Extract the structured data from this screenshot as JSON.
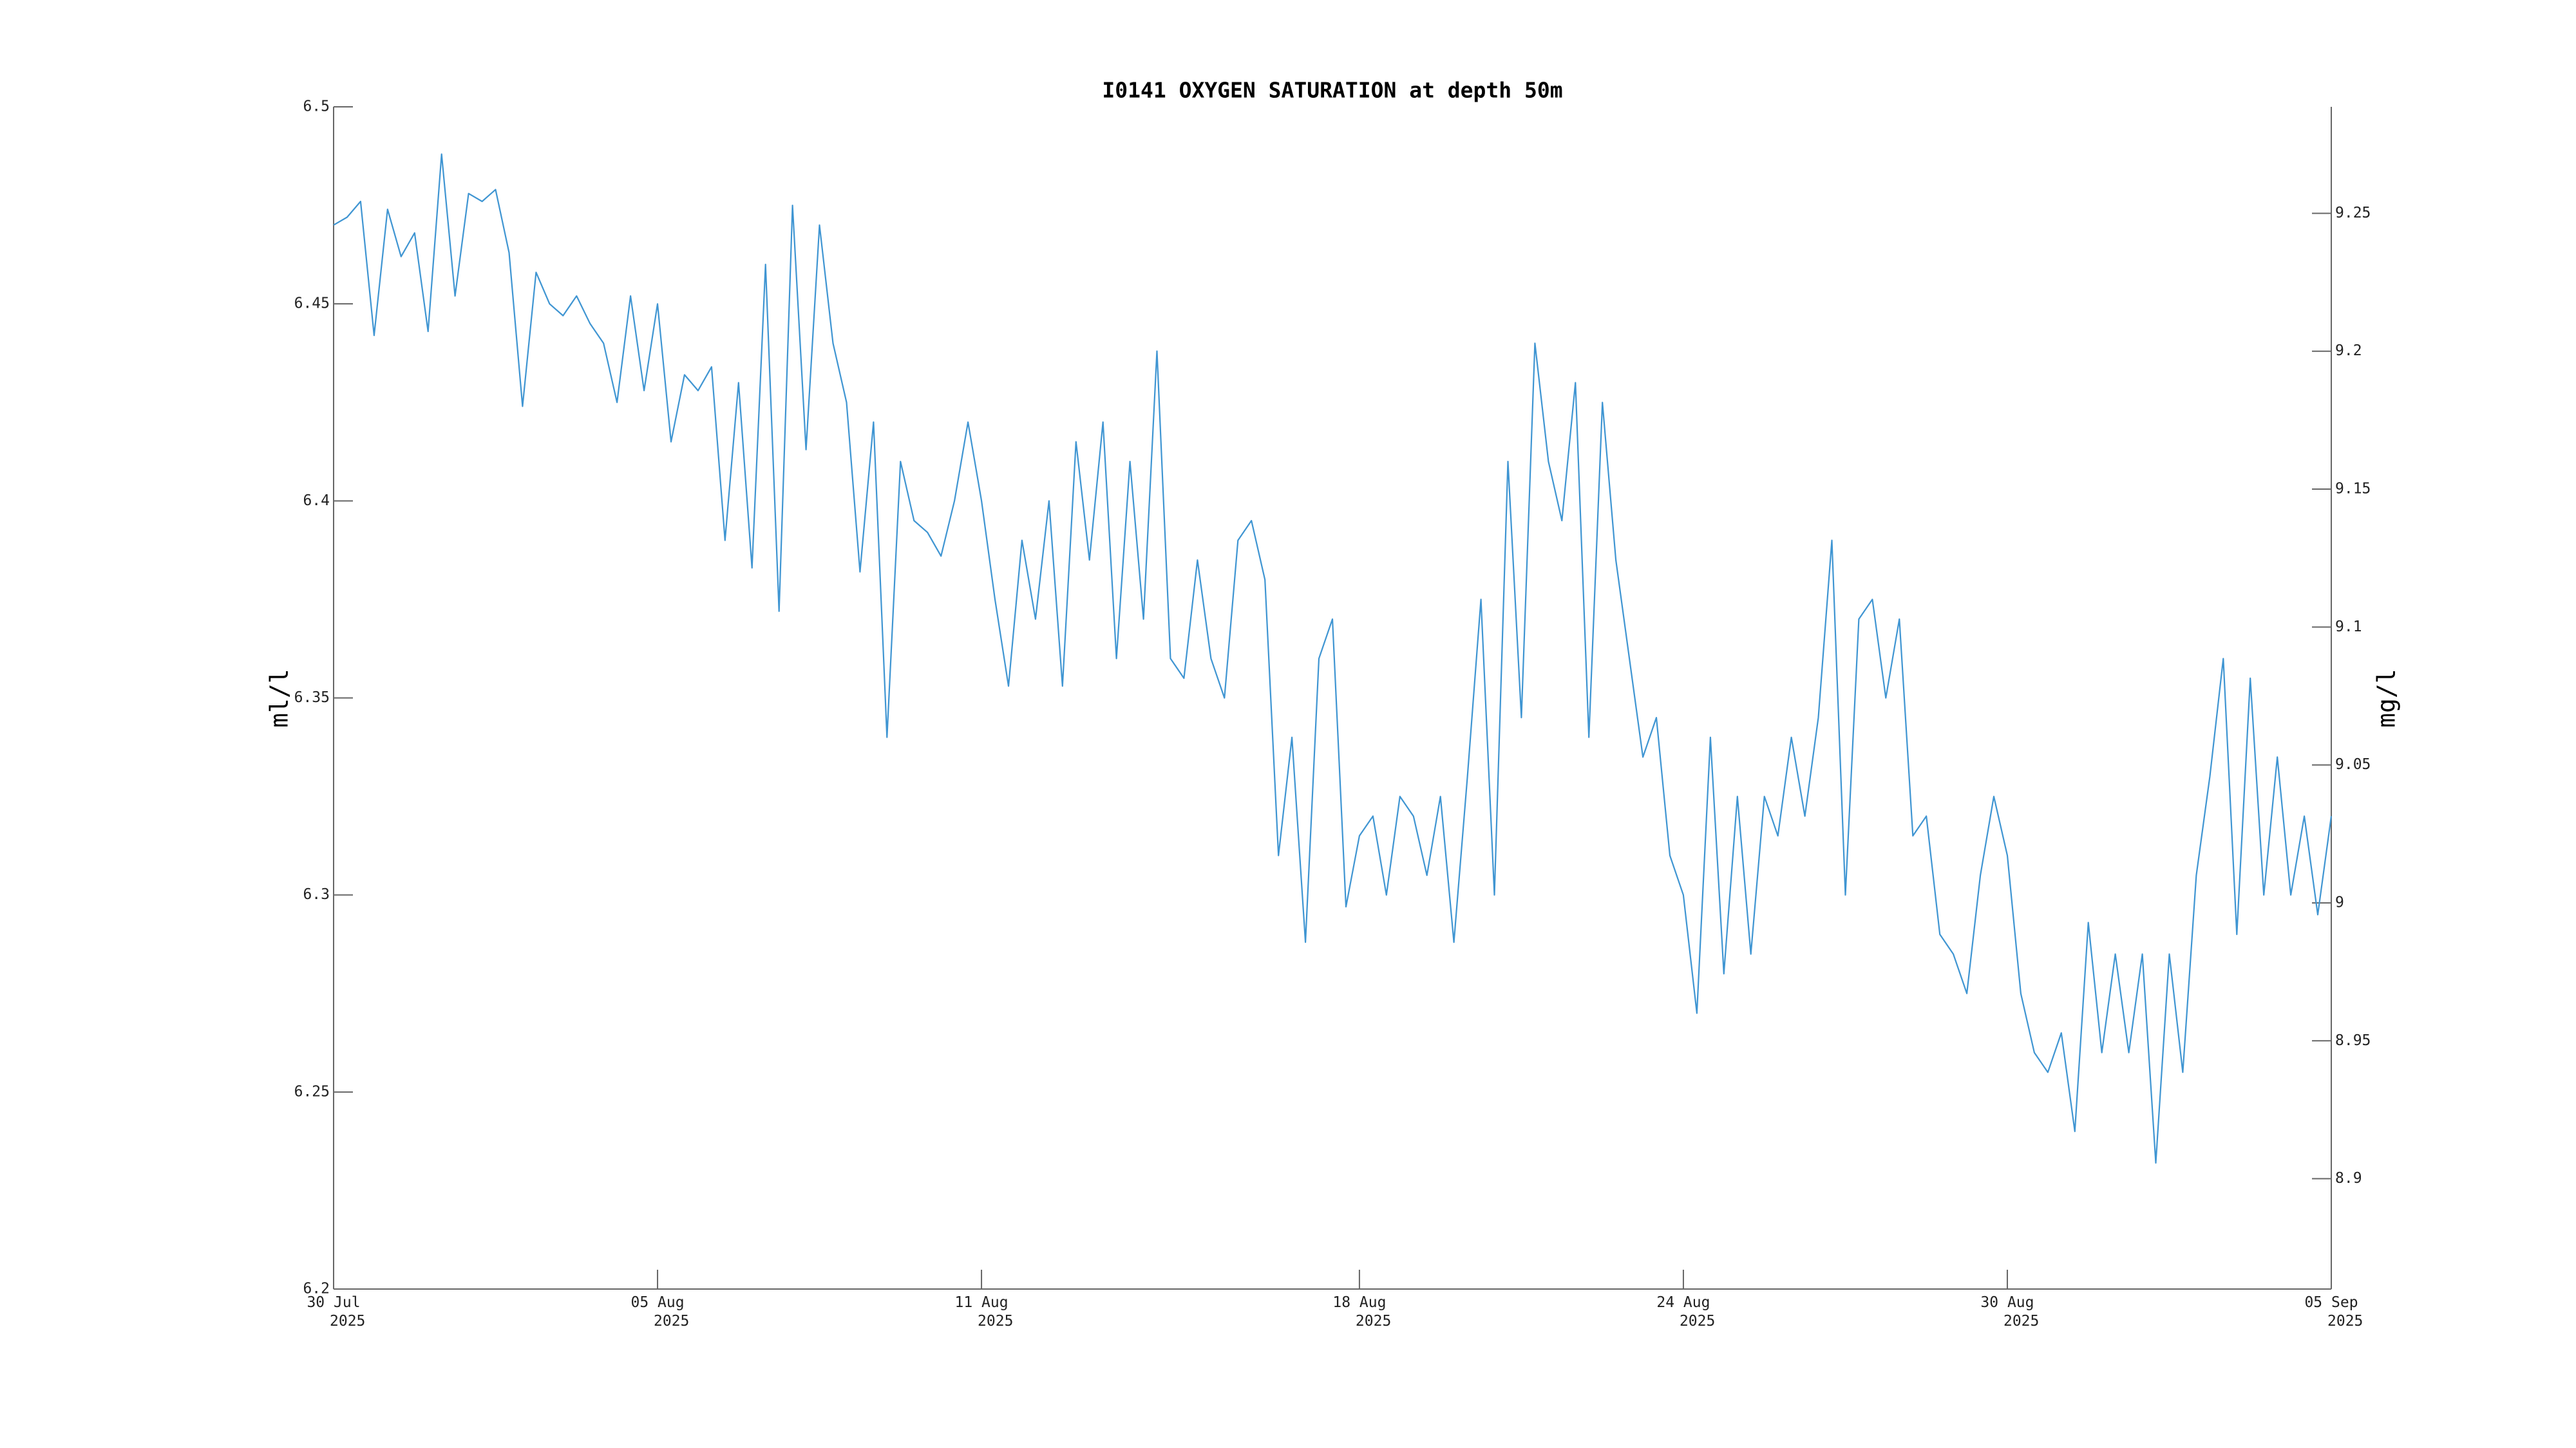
{
  "chart_data": {
    "type": "line",
    "title": "I0141 OXYGEN SATURATION at depth 50m",
    "ylabel": "ml/l",
    "y2label": "mg/l",
    "xlim": [
      "2025-07-30",
      "2025-09-05"
    ],
    "xticks": [
      {
        "value": "2025-07-30",
        "label": "30 Jul\n2025"
      },
      {
        "value": "2025-08-05",
        "label": "05 Aug\n2025"
      },
      {
        "value": "2025-08-11",
        "label": "11 Aug\n2025"
      },
      {
        "value": "2025-08-18",
        "label": "18 Aug\n2025"
      },
      {
        "value": "2025-08-24",
        "label": "24 Aug\n2025"
      },
      {
        "value": "2025-08-30",
        "label": "30 Aug\n2025"
      },
      {
        "value": "2025-09-05",
        "label": "05 Sep\n2025"
      }
    ],
    "ylim": [
      6.2,
      6.5
    ],
    "yticks": [
      6.2,
      6.25,
      6.3,
      6.35,
      6.4,
      6.45,
      6.5
    ],
    "y2lim": [
      8.86,
      9.2886
    ],
    "y2ticks": [
      8.9,
      8.95,
      9,
      9.05,
      9.1,
      9.15,
      9.2,
      9.25
    ],
    "series": [
      {
        "color": "#3f95d2",
        "values": [
          6.47,
          6.472,
          6.476,
          6.442,
          6.474,
          6.462,
          6.468,
          6.443,
          6.488,
          6.452,
          6.478,
          6.476,
          6.479,
          6.463,
          6.424,
          6.458,
          6.45,
          6.447,
          6.452,
          6.445,
          6.44,
          6.425,
          6.452,
          6.428,
          6.45,
          6.415,
          6.432,
          6.428,
          6.434,
          6.39,
          6.43,
          6.383,
          6.46,
          6.372,
          6.475,
          6.413,
          6.47,
          6.44,
          6.425,
          6.382,
          6.42,
          6.34,
          6.41,
          6.395,
          6.392,
          6.386,
          6.4,
          6.42,
          6.4,
          6.375,
          6.353,
          6.39,
          6.37,
          6.4,
          6.353,
          6.415,
          6.385,
          6.42,
          6.36,
          6.41,
          6.37,
          6.438,
          6.36,
          6.355,
          6.385,
          6.36,
          6.35,
          6.39,
          6.395,
          6.38,
          6.31,
          6.34,
          6.288,
          6.36,
          6.37,
          6.297,
          6.315,
          6.32,
          6.3,
          6.325,
          6.32,
          6.305,
          6.325,
          6.288,
          6.33,
          6.375,
          6.3,
          6.41,
          6.345,
          6.44,
          6.41,
          6.395,
          6.43,
          6.34,
          6.425,
          6.385,
          6.36,
          6.335,
          6.345,
          6.31,
          6.3,
          6.27,
          6.34,
          6.28,
          6.325,
          6.285,
          6.325,
          6.315,
          6.34,
          6.32,
          6.345,
          6.39,
          6.3,
          6.37,
          6.375,
          6.35,
          6.37,
          6.315,
          6.32,
          6.29,
          6.285,
          6.275,
          6.305,
          6.325,
          6.31,
          6.275,
          6.26,
          6.255,
          6.265,
          6.24,
          6.293,
          6.26,
          6.285,
          6.26,
          6.285,
          6.232,
          6.285,
          6.255,
          6.305,
          6.33,
          6.36,
          6.29,
          6.355,
          6.3,
          6.335,
          6.3,
          6.32,
          6.295,
          6.32
        ]
      }
    ]
  }
}
